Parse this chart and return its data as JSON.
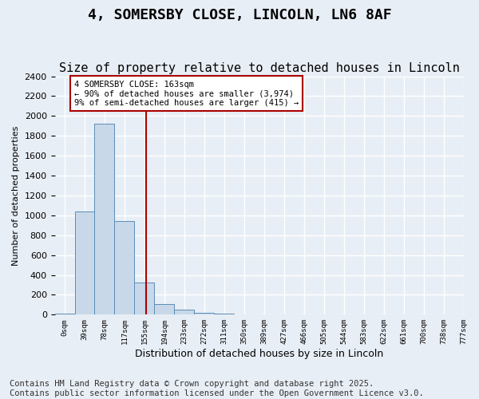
{
  "title": "4, SOMERSBY CLOSE, LINCOLN, LN6 8AF",
  "subtitle": "Size of property relative to detached houses in Lincoln",
  "xlabel": "Distribution of detached houses by size in Lincoln",
  "ylabel": "Number of detached properties",
  "bar_values": [
    10,
    1040,
    1920,
    940,
    320,
    110,
    50,
    20,
    10,
    0,
    0,
    0,
    0,
    0,
    0,
    0,
    0,
    0,
    0,
    0
  ],
  "bin_labels": [
    "0sqm",
    "39sqm",
    "78sqm",
    "117sqm",
    "155sqm",
    "194sqm",
    "233sqm",
    "272sqm",
    "311sqm",
    "350sqm",
    "389sqm",
    "427sqm",
    "466sqm",
    "505sqm",
    "544sqm",
    "583sqm",
    "622sqm",
    "661sqm",
    "700sqm",
    "738sqm"
  ],
  "xtick_extra": "777sqm",
  "bar_color": "#c8d8e8",
  "bar_edge_color": "#5b8db8",
  "background_color": "#e8eef5",
  "grid_color": "#ffffff",
  "vline_x": 4.1,
  "vline_color": "#aa0000",
  "annotation_text": "4 SOMERSBY CLOSE: 163sqm\n← 90% of detached houses are smaller (3,974)\n9% of semi-detached houses are larger (415) →",
  "annotation_box_color": "#ffffff",
  "annotation_box_edge": "#aa0000",
  "ylim": [
    0,
    2400
  ],
  "footer": "Contains HM Land Registry data © Crown copyright and database right 2025.\nContains public sector information licensed under the Open Government Licence v3.0.",
  "title_fontsize": 13,
  "subtitle_fontsize": 11,
  "footer_fontsize": 7.5
}
